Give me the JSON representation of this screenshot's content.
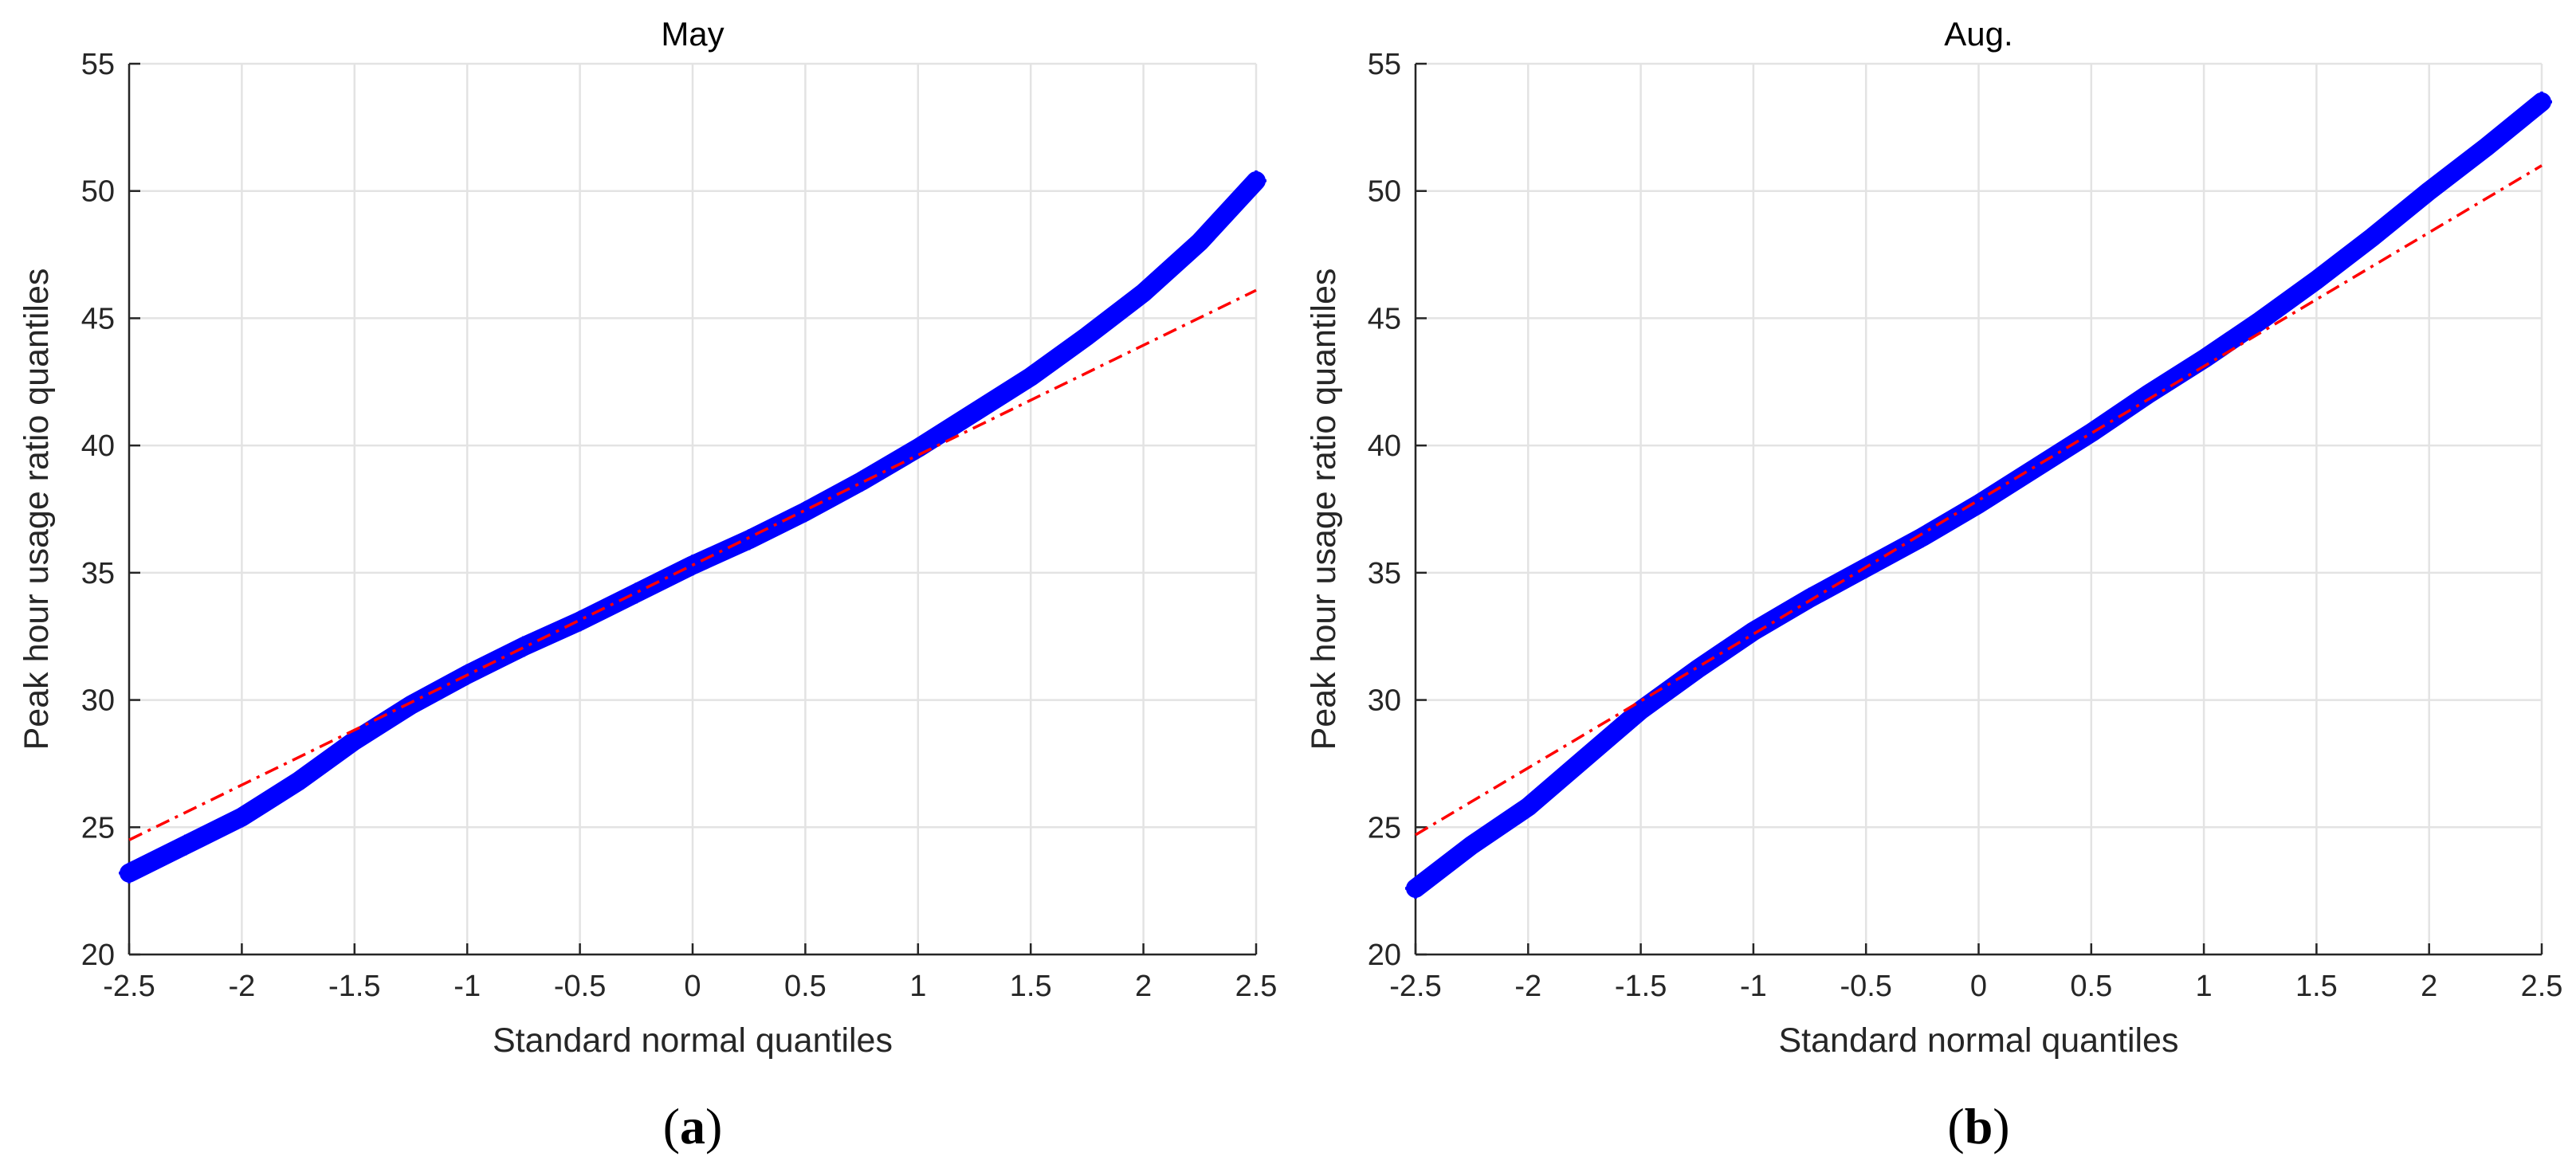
{
  "chart_data": [
    {
      "type": "scatter",
      "title": "May",
      "panel_label": "a",
      "xlabel": "Standard normal quantiles",
      "ylabel": "Peak hour usage ratio quantiles",
      "xlim": [
        -2.5,
        2.5
      ],
      "ylim": [
        20,
        55
      ],
      "xticks": [
        -2.5,
        -2,
        -1.5,
        -1,
        -0.5,
        0,
        0.5,
        1,
        1.5,
        2,
        2.5
      ],
      "yticks": [
        20,
        25,
        30,
        35,
        40,
        45,
        50,
        55
      ],
      "grid": true,
      "series": [
        {
          "color": "#0000ff",
          "marker": "+",
          "points": [
            [
              -2.5,
              23.2
            ],
            [
              -2.25,
              24.3
            ],
            [
              -2.0,
              25.4
            ],
            [
              -1.75,
              26.8
            ],
            [
              -1.5,
              28.4
            ],
            [
              -1.25,
              29.8
            ],
            [
              -1.0,
              31.0
            ],
            [
              -0.75,
              32.1
            ],
            [
              -0.5,
              33.1
            ],
            [
              -0.25,
              34.2
            ],
            [
              0.0,
              35.3
            ],
            [
              0.25,
              36.3
            ],
            [
              0.5,
              37.4
            ],
            [
              0.75,
              38.6
            ],
            [
              1.0,
              39.9
            ],
            [
              1.25,
              41.3
            ],
            [
              1.5,
              42.7
            ],
            [
              1.75,
              44.3
            ],
            [
              2.0,
              46.0
            ],
            [
              2.25,
              48.0
            ],
            [
              2.5,
              50.4
            ]
          ]
        },
        {
          "color": "#ff0000",
          "style": "dash-dot",
          "points": [
            [
              -2.5,
              24.5
            ],
            [
              2.5,
              46.1
            ]
          ]
        }
      ]
    },
    {
      "type": "scatter",
      "title": "Aug.",
      "panel_label": "b",
      "xlabel": "Standard normal quantiles",
      "ylabel": "Peak hour usage ratio quantiles",
      "xlim": [
        -2.5,
        2.5
      ],
      "ylim": [
        20,
        55
      ],
      "xticks": [
        -2.5,
        -2,
        -1.5,
        -1,
        -0.5,
        0,
        0.5,
        1,
        1.5,
        2,
        2.5
      ],
      "yticks": [
        20,
        25,
        30,
        35,
        40,
        45,
        50,
        55
      ],
      "grid": true,
      "series": [
        {
          "color": "#0000ff",
          "marker": "+",
          "points": [
            [
              -2.5,
              22.6
            ],
            [
              -2.25,
              24.3
            ],
            [
              -2.0,
              25.8
            ],
            [
              -1.75,
              27.7
            ],
            [
              -1.5,
              29.6
            ],
            [
              -1.25,
              31.2
            ],
            [
              -1.0,
              32.7
            ],
            [
              -0.75,
              34.0
            ],
            [
              -0.5,
              35.2
            ],
            [
              -0.25,
              36.4
            ],
            [
              0.0,
              37.7
            ],
            [
              0.25,
              39.1
            ],
            [
              0.5,
              40.5
            ],
            [
              0.75,
              42.0
            ],
            [
              1.0,
              43.4
            ],
            [
              1.25,
              44.9
            ],
            [
              1.5,
              46.5
            ],
            [
              1.75,
              48.2
            ],
            [
              2.0,
              50.0
            ],
            [
              2.25,
              51.7
            ],
            [
              2.5,
              53.5
            ]
          ]
        },
        {
          "color": "#ff0000",
          "style": "dash-dot",
          "points": [
            [
              -2.5,
              24.7
            ],
            [
              2.5,
              51.0
            ]
          ]
        }
      ]
    }
  ]
}
